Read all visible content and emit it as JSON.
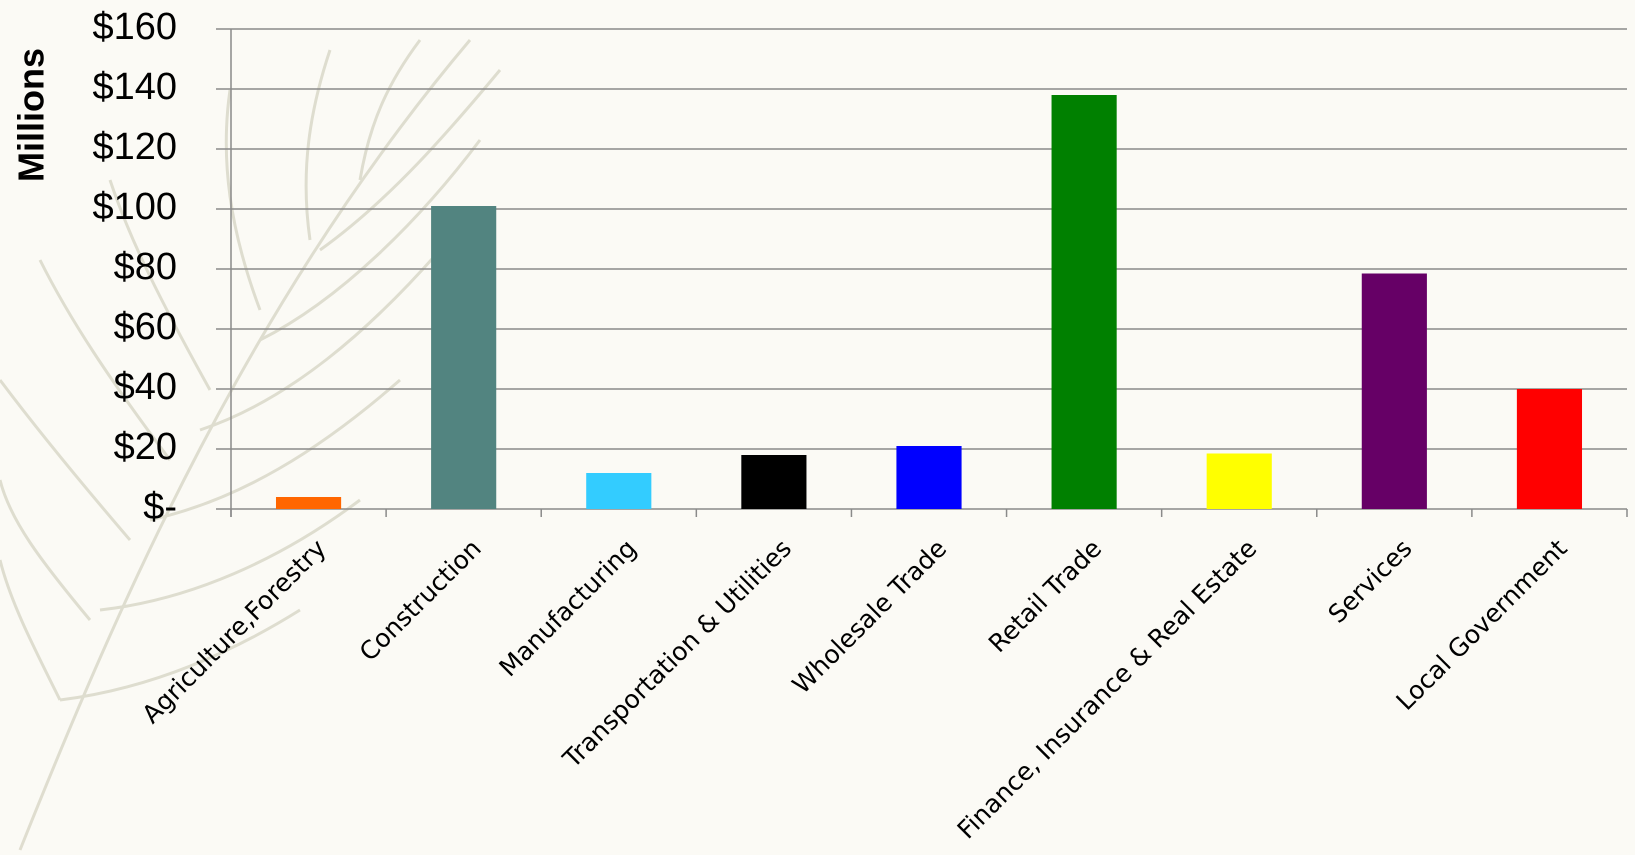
{
  "chart_data": {
    "type": "bar",
    "y_label": "Millions",
    "categories": [
      "Agriculture,Forestry",
      "Construction",
      "Manufacturing",
      "Transportation & Utilities",
      "Wholesale Trade",
      "Retail Trade",
      "Finance, Insurance & Real Estate",
      "Services",
      "Local Government"
    ],
    "values": [
      4,
      101,
      12,
      18,
      21,
      138,
      18.5,
      78.5,
      40
    ],
    "colors": [
      "#ff6600",
      "#528480",
      "#33ccff",
      "#000000",
      "#0000ff",
      "#008000",
      "#ffff00",
      "#660066",
      "#ff0000"
    ],
    "ylim": [
      0,
      160
    ],
    "yticks": [
      {
        "value": 0,
        "label": "$-"
      },
      {
        "value": 20,
        "label": "$20"
      },
      {
        "value": 40,
        "label": "$40"
      },
      {
        "value": 60,
        "label": "$60"
      },
      {
        "value": 80,
        "label": "$80"
      },
      {
        "value": 100,
        "label": "$100"
      },
      {
        "value": 120,
        "label": "$120"
      },
      {
        "value": 140,
        "label": "$140"
      },
      {
        "value": 160,
        "label": "$160"
      }
    ],
    "grid": true
  }
}
